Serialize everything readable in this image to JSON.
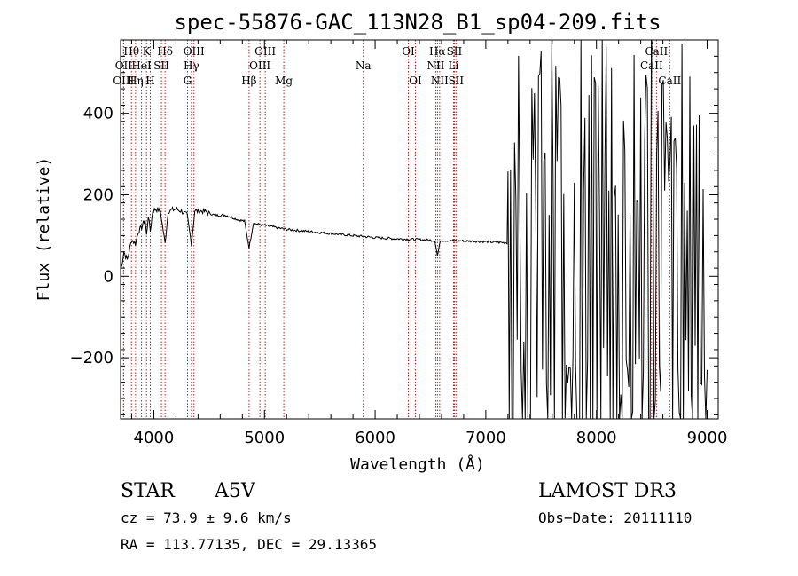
{
  "chart_data": {
    "type": "line",
    "title": "spec-55876-GAC_113N28_B1_sp04-209.fits",
    "xlabel": "Wavelength (Å)",
    "ylabel": "Flux (relative)",
    "xlim": [
      3700,
      9100
    ],
    "ylim": [
      -350,
      580
    ],
    "x_ticks": [
      4000,
      5000,
      6000,
      7000,
      8000,
      9000
    ],
    "y_ticks": [
      -200,
      0,
      200,
      400
    ],
    "x_tick_labels": [
      "4000",
      "5000",
      "6000",
      "7000",
      "8000",
      "9000"
    ],
    "y_tick_labels": [
      "−200",
      "0",
      "200",
      "400"
    ],
    "line_color": "#000000",
    "marker_color": "#b22222",
    "continuum": [
      [
        3700,
        10
      ],
      [
        3730,
        60
      ],
      [
        3760,
        40
      ],
      [
        3800,
        90
      ],
      [
        3835,
        80
      ],
      [
        3860,
        110
      ],
      [
        3890,
        120
      ],
      [
        3920,
        140
      ],
      [
        3935,
        100
      ],
      [
        3950,
        150
      ],
      [
        3968,
        110
      ],
      [
        3990,
        160
      ],
      [
        4020,
        165
      ],
      [
        4060,
        160
      ],
      [
        4102,
        80
      ],
      [
        4130,
        160
      ],
      [
        4200,
        165
      ],
      [
        4250,
        160
      ],
      [
        4300,
        150
      ],
      [
        4340,
        80
      ],
      [
        4370,
        160
      ],
      [
        4450,
        160
      ],
      [
        4550,
        150
      ],
      [
        4650,
        150
      ],
      [
        4750,
        140
      ],
      [
        4820,
        135
      ],
      [
        4861,
        70
      ],
      [
        4900,
        130
      ],
      [
        5000,
        125
      ],
      [
        5100,
        120
      ],
      [
        5200,
        115
      ],
      [
        5400,
        110
      ],
      [
        5600,
        105
      ],
      [
        5800,
        100
      ],
      [
        6000,
        95
      ],
      [
        6200,
        92
      ],
      [
        6400,
        90
      ],
      [
        6540,
        88
      ],
      [
        6563,
        50
      ],
      [
        6590,
        88
      ],
      [
        6800,
        87
      ],
      [
        7000,
        85
      ],
      [
        7200,
        82
      ]
    ],
    "noisy_region": {
      "x_start": 7200,
      "x_end": 9000
    },
    "spectral_lines": [
      {
        "label": "Hθ",
        "x": 3798,
        "row": 1
      },
      {
        "label": "OII",
        "x": 3727,
        "row": 2
      },
      {
        "label": "OIII",
        "x": 3727,
        "row": 3
      },
      {
        "label": "K",
        "x": 3934,
        "row": 1
      },
      {
        "label": "HeI",
        "x": 3889,
        "row": 2
      },
      {
        "label": "Hη",
        "x": 3835,
        "row": 3
      },
      {
        "label": "SII",
        "x": 4069,
        "row": 2
      },
      {
        "label": "H",
        "x": 3968,
        "row": 3
      },
      {
        "label": "Hδ",
        "x": 4102,
        "row": 1
      },
      {
        "label": "OIII",
        "x": 4363,
        "row": 1
      },
      {
        "label": "Hγ",
        "x": 4340,
        "row": 2
      },
      {
        "label": "G",
        "x": 4305,
        "row": 3
      },
      {
        "label": "OIII",
        "x": 5007,
        "row": 1
      },
      {
        "label": "OIII",
        "x": 4959,
        "row": 2
      },
      {
        "label": "Hβ",
        "x": 4861,
        "row": 3
      },
      {
        "label": "Mg",
        "x": 5175,
        "row": 3
      },
      {
        "label": "Na",
        "x": 5893,
        "row": 2
      },
      {
        "label": "OI",
        "x": 6300,
        "row": 1
      },
      {
        "label": "OI",
        "x": 6364,
        "row": 3
      },
      {
        "label": "Hα",
        "x": 6563,
        "row": 1
      },
      {
        "label": "SII",
        "x": 6716,
        "row": 1
      },
      {
        "label": "NII",
        "x": 6548,
        "row": 2
      },
      {
        "label": "Li",
        "x": 6708,
        "row": 2
      },
      {
        "label": "NII",
        "x": 6583,
        "row": 3
      },
      {
        "label": "SII",
        "x": 6731,
        "row": 3
      },
      {
        "label": "CaII",
        "x": 8542,
        "row": 1
      },
      {
        "label": "CaII",
        "x": 8498,
        "row": 2
      },
      {
        "label": "CaII",
        "x": 8662,
        "row": 3
      }
    ]
  },
  "info": {
    "object_class": "STAR",
    "subclass": "A5V",
    "survey": "LAMOST DR3",
    "redshift": "cz = 73.9 ± 9.6 km/s",
    "obs_date": "Obs−Date: 20111110",
    "coords": "RA = 113.77135, DEC =  29.13365"
  }
}
